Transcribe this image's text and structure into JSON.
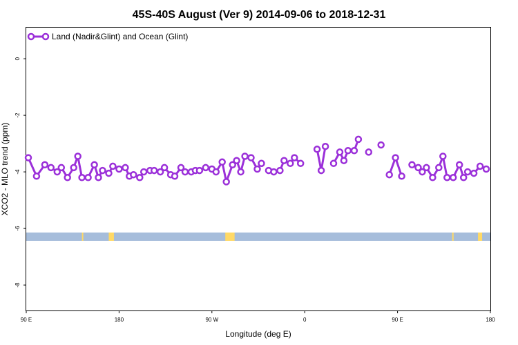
{
  "chart_data": {
    "type": "line",
    "title": "45S-40S August (Ver 9)   2014-09-06 to 2018-12-31",
    "xlabel": "Longitude (deg E)",
    "ylabel": "XCO2 - MLO trend (ppm)",
    "xlim": [
      90,
      540
    ],
    "ylim": [
      -8.9,
      1.1
    ],
    "x_ticks": [
      {
        "value": 90,
        "label": "90 E"
      },
      {
        "value": 180,
        "label": "180"
      },
      {
        "value": 270,
        "label": "90 W"
      },
      {
        "value": 360,
        "label": "0"
      },
      {
        "value": 450,
        "label": "90 E"
      },
      {
        "value": 540,
        "label": "180"
      }
    ],
    "y_ticks": [
      {
        "value": 0,
        "label": "0"
      },
      {
        "value": -2,
        "label": "-2"
      },
      {
        "value": -4,
        "label": "-4"
      },
      {
        "value": -6,
        "label": "-6"
      },
      {
        "value": -8,
        "label": "-8"
      }
    ],
    "legend": {
      "position": "top-left"
    },
    "series": [
      {
        "name": "Land (Nadir&Glint) and Ocean (Glint)",
        "color": "#9b30d9",
        "segments": [
          [
            [
              92,
              -3.5
            ],
            [
              100,
              -4.15
            ],
            [
              108,
              -3.75
            ],
            [
              114,
              -3.85
            ],
            [
              120,
              -4.0
            ],
            [
              124,
              -3.85
            ],
            [
              130,
              -4.2
            ],
            [
              136,
              -3.85
            ],
            [
              140,
              -3.45
            ],
            [
              144,
              -4.2
            ],
            [
              150,
              -4.2
            ],
            [
              156,
              -3.75
            ],
            [
              160,
              -4.2
            ],
            [
              164,
              -3.95
            ],
            [
              170,
              -4.05
            ],
            [
              174,
              -3.8
            ],
            [
              180,
              -3.9
            ],
            [
              186,
              -3.85
            ],
            [
              190,
              -4.15
            ],
            [
              194,
              -4.1
            ],
            [
              200,
              -4.2
            ],
            [
              204,
              -4.0
            ],
            [
              210,
              -3.95
            ],
            [
              214,
              -3.95
            ],
            [
              220,
              -4.0
            ],
            [
              224,
              -3.85
            ],
            [
              230,
              -4.1
            ],
            [
              234,
              -4.15
            ],
            [
              240,
              -3.85
            ],
            [
              244,
              -4.0
            ],
            [
              250,
              -4.0
            ],
            [
              254,
              -3.95
            ],
            [
              258,
              -3.95
            ],
            [
              264,
              -3.85
            ],
            [
              270,
              -3.9
            ],
            [
              274,
              -4.0
            ],
            [
              280,
              -3.65
            ],
            [
              284,
              -4.35
            ],
            [
              290,
              -3.75
            ],
            [
              294,
              -3.6
            ],
            [
              298,
              -4.0
            ],
            [
              302,
              -3.45
            ],
            [
              308,
              -3.5
            ],
            [
              314,
              -3.9
            ],
            [
              318,
              -3.7
            ]
          ],
          [
            [
              325,
              -3.95
            ],
            [
              330,
              -4.0
            ],
            [
              336,
              -3.95
            ],
            [
              340,
              -3.6
            ],
            [
              346,
              -3.7
            ],
            [
              350,
              -3.5
            ],
            [
              356,
              -3.7
            ]
          ],
          [
            [
              372,
              -3.2
            ],
            [
              376,
              -3.95
            ],
            [
              380,
              -3.1
            ]
          ],
          [
            [
              388,
              -3.7
            ],
            [
              394,
              -3.3
            ],
            [
              398,
              -3.6
            ],
            [
              402,
              -3.25
            ],
            [
              408,
              -3.25
            ],
            [
              412,
              -2.85
            ]
          ],
          [
            [
              422,
              -3.3
            ]
          ],
          [
            [
              434,
              -3.05
            ]
          ],
          [
            [
              442,
              -4.1
            ],
            [
              448,
              -3.5
            ],
            [
              454,
              -4.15
            ]
          ],
          [
            [
              464,
              -3.75
            ],
            [
              470,
              -3.85
            ],
            [
              474,
              -4.0
            ],
            [
              478,
              -3.85
            ],
            [
              484,
              -4.2
            ],
            [
              490,
              -3.85
            ],
            [
              494,
              -3.45
            ],
            [
              498,
              -4.2
            ],
            [
              504,
              -4.2
            ],
            [
              510,
              -3.75
            ],
            [
              514,
              -4.2
            ],
            [
              518,
              -4.0
            ],
            [
              524,
              -4.05
            ],
            [
              530,
              -3.8
            ],
            [
              536,
              -3.9
            ]
          ]
        ]
      }
    ],
    "map_strip": {
      "ocean_color": "#a6bddb",
      "land_color": "#ffd966",
      "lat_range": [
        -45,
        -40
      ],
      "land_ranges": [
        [
          144,
          145
        ],
        [
          170,
          175
        ],
        [
          283,
          292
        ],
        [
          503,
          504
        ],
        [
          528,
          532
        ]
      ]
    }
  }
}
